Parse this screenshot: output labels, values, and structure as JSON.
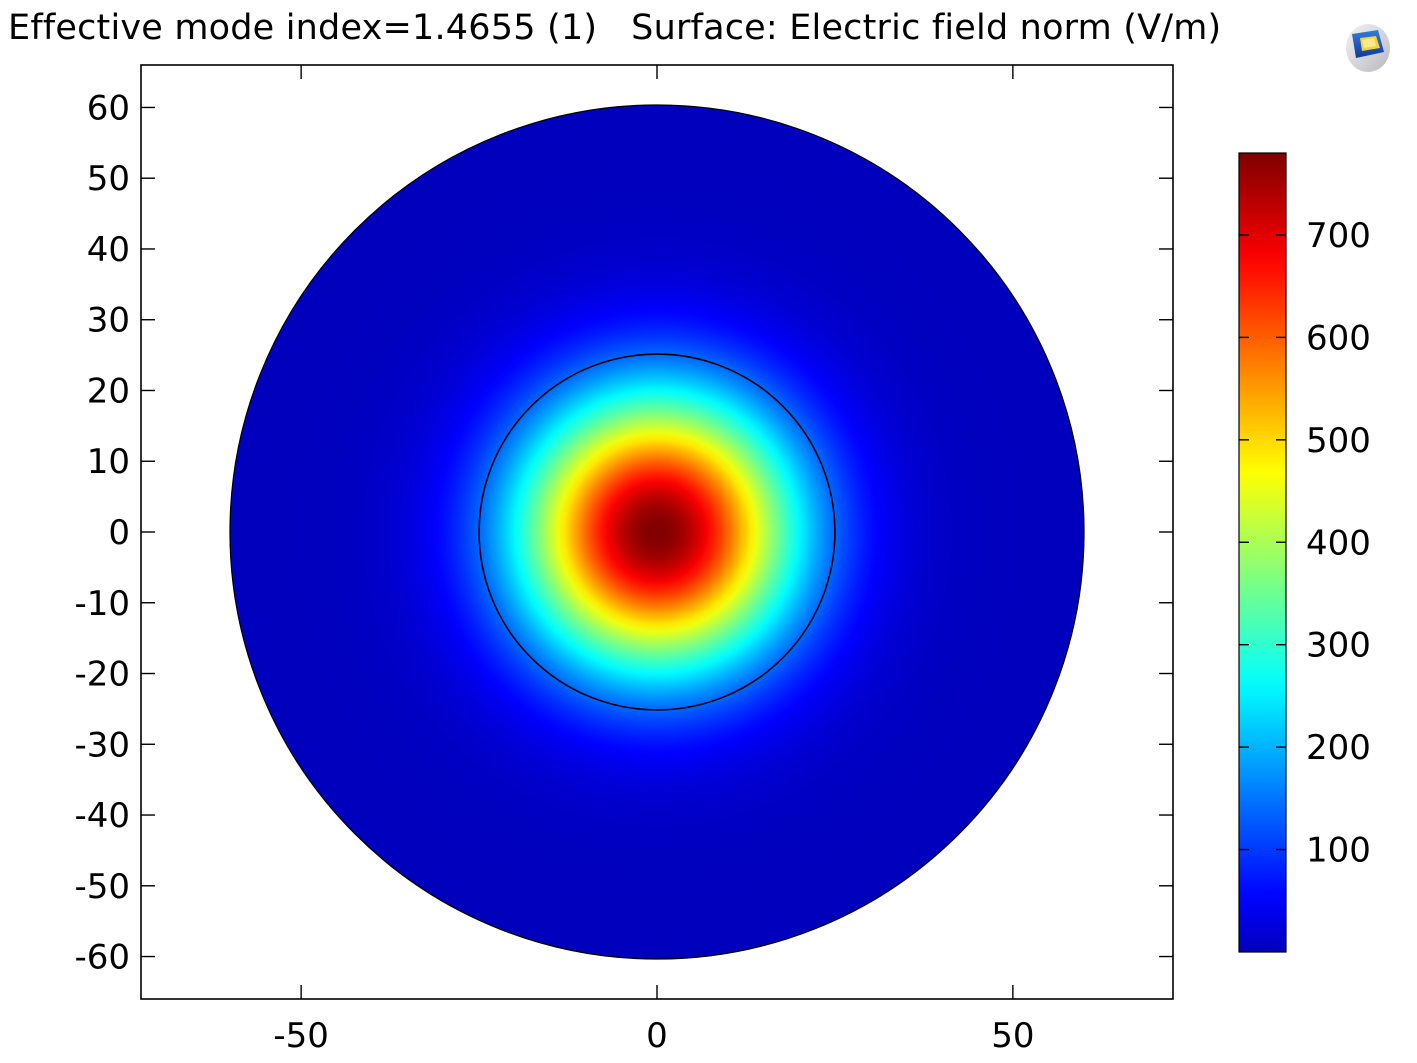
{
  "header": {
    "title": "Effective mode index=1.4655 (1)   Surface: Electric field norm (V/m)",
    "logo_icon": "comsol-logo-icon"
  },
  "chart_data": {
    "type": "heatmap",
    "title": "Effective mode index=1.4655 (1)   Surface: Electric field norm (V/m)",
    "xlabel": "",
    "ylabel": "",
    "xlim": [
      -72.5,
      72.5
    ],
    "ylim": [
      -66,
      66
    ],
    "x_ticks": [
      -50,
      0,
      50
    ],
    "y_ticks": [
      60,
      50,
      40,
      30,
      20,
      10,
      0,
      -10,
      -20,
      -30,
      -40,
      -50,
      -60
    ],
    "grid": false,
    "domains": {
      "cladding": {
        "shape": "circle",
        "center": [
          0,
          0
        ],
        "radius": 60
      },
      "core": {
        "shape": "circle",
        "center": [
          0,
          0
        ],
        "radius": 25
      }
    },
    "field": {
      "quantity": "Electric field norm",
      "unit": "V/m",
      "peak_value": 780,
      "peak_location": [
        0,
        0
      ],
      "profile": "gaussian-like mode confined to core",
      "e_fold_radius": 19,
      "background_value": 0
    },
    "colorbar": {
      "colormap": "rainbow-jet",
      "min": 0,
      "max": 780,
      "ticks": [
        700,
        600,
        500,
        400,
        300,
        200,
        100
      ],
      "placement": "right"
    }
  }
}
